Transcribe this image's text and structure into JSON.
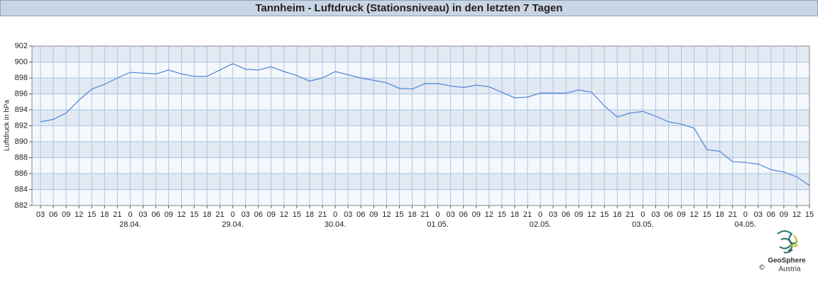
{
  "chart_data": {
    "type": "line",
    "title": "Tannheim - Luftdruck (Stationsniveau) in den letzten 7 Tagen",
    "y_label": "Luftdruck in hPa",
    "x": [
      "27.04. 03",
      "27.04. 06",
      "27.04. 09",
      "27.04. 12",
      "27.04. 15",
      "27.04. 18",
      "27.04. 21",
      "28.04. 00",
      "28.04. 03",
      "28.04. 06",
      "28.04. 09",
      "28.04. 12",
      "28.04. 15",
      "28.04. 18",
      "28.04. 21",
      "29.04. 00",
      "29.04. 03",
      "29.04. 06",
      "29.04. 09",
      "29.04. 12",
      "29.04. 15",
      "29.04. 18",
      "29.04. 21",
      "30.04. 00",
      "30.04. 03",
      "30.04. 06",
      "30.04. 09",
      "30.04. 12",
      "30.04. 15",
      "30.04. 18",
      "30.04. 21",
      "01.05. 00",
      "01.05. 03",
      "01.05. 06",
      "01.05. 09",
      "01.05. 12",
      "01.05. 15",
      "01.05. 18",
      "01.05. 21",
      "02.05. 00",
      "02.05. 03",
      "02.05. 06",
      "02.05. 09",
      "02.05. 12",
      "02.05. 15",
      "02.05. 18",
      "02.05. 21",
      "03.05. 00",
      "03.05. 03",
      "03.05. 06",
      "03.05. 09",
      "03.05. 12",
      "03.05. 15",
      "03.05. 18",
      "03.05. 21",
      "04.05. 00",
      "04.05. 03",
      "04.05. 06",
      "04.05. 09",
      "04.05. 12",
      "04.05. 15"
    ],
    "series": [
      {
        "name": "Luftdruck",
        "color": "#4f84d8",
        "values": [
          892.5,
          892.8,
          893.6,
          895.2,
          896.6,
          897.2,
          898.0,
          898.7,
          898.6,
          898.5,
          899.0,
          898.5,
          898.2,
          898.2,
          899.0,
          899.8,
          899.1,
          899.0,
          899.4,
          898.8,
          898.3,
          897.6,
          898.0,
          898.8,
          898.4,
          898.0,
          897.7,
          897.4,
          896.7,
          896.6,
          897.3,
          897.3,
          897.0,
          896.8,
          897.1,
          896.9,
          896.2,
          895.5,
          895.6,
          896.1,
          896.1,
          896.1,
          896.5,
          896.2,
          894.5,
          893.1,
          893.6,
          893.8,
          893.2,
          892.5,
          892.2,
          891.7,
          889.0,
          888.8,
          887.5,
          887.4,
          887.2,
          886.5,
          886.2,
          885.6,
          884.5
        ]
      }
    ],
    "xlim": [
      "27.04. 01",
      "04.05. 15"
    ],
    "xticks": [
      {
        "value": "27.04. 03",
        "label": "03"
      },
      {
        "value": "27.04. 06",
        "label": "06"
      },
      {
        "value": "27.04. 09",
        "label": "09"
      },
      {
        "value": "27.04. 12",
        "label": "12"
      },
      {
        "value": "27.04. 15",
        "label": "15"
      },
      {
        "value": "27.04. 18",
        "label": "18"
      },
      {
        "value": "27.04. 21",
        "label": "21"
      },
      {
        "value": "28.04. 00",
        "label": "0"
      },
      {
        "value": "28.04. 03",
        "label": "03"
      },
      {
        "value": "28.04. 06",
        "label": "06"
      },
      {
        "value": "28.04. 09",
        "label": "09"
      },
      {
        "value": "28.04. 12",
        "label": "12"
      },
      {
        "value": "28.04. 15",
        "label": "15"
      },
      {
        "value": "28.04. 18",
        "label": "18"
      },
      {
        "value": "28.04. 21",
        "label": "21"
      },
      {
        "value": "29.04. 00",
        "label": "0"
      },
      {
        "value": "29.04. 03",
        "label": "03"
      },
      {
        "value": "29.04. 06",
        "label": "06"
      },
      {
        "value": "29.04. 09",
        "label": "09"
      },
      {
        "value": "29.04. 12",
        "label": "12"
      },
      {
        "value": "29.04. 15",
        "label": "15"
      },
      {
        "value": "29.04. 18",
        "label": "18"
      },
      {
        "value": "29.04. 21",
        "label": "21"
      },
      {
        "value": "30.04. 00",
        "label": "0"
      },
      {
        "value": "30.04. 03",
        "label": "03"
      },
      {
        "value": "30.04. 06",
        "label": "06"
      },
      {
        "value": "30.04. 09",
        "label": "09"
      },
      {
        "value": "30.04. 12",
        "label": "12"
      },
      {
        "value": "30.04. 15",
        "label": "15"
      },
      {
        "value": "30.04. 18",
        "label": "18"
      },
      {
        "value": "30.04. 21",
        "label": "21"
      },
      {
        "value": "01.05. 00",
        "label": "0"
      },
      {
        "value": "01.05. 03",
        "label": "03"
      },
      {
        "value": "01.05. 06",
        "label": "06"
      },
      {
        "value": "01.05. 09",
        "label": "09"
      },
      {
        "value": "01.05. 12",
        "label": "12"
      },
      {
        "value": "01.05. 15",
        "label": "15"
      },
      {
        "value": "01.05. 18",
        "label": "18"
      },
      {
        "value": "01.05. 21",
        "label": "21"
      },
      {
        "value": "02.05. 00",
        "label": "0"
      },
      {
        "value": "02.05. 03",
        "label": "03"
      },
      {
        "value": "02.05. 06",
        "label": "06"
      },
      {
        "value": "02.05. 09",
        "label": "09"
      },
      {
        "value": "02.05. 12",
        "label": "12"
      },
      {
        "value": "02.05. 15",
        "label": "15"
      },
      {
        "value": "02.05. 18",
        "label": "18"
      },
      {
        "value": "02.05. 21",
        "label": "21"
      },
      {
        "value": "03.05. 00",
        "label": "0"
      },
      {
        "value": "03.05. 03",
        "label": "03"
      },
      {
        "value": "03.05. 06",
        "label": "06"
      },
      {
        "value": "03.05. 09",
        "label": "09"
      },
      {
        "value": "03.05. 12",
        "label": "12"
      },
      {
        "value": "03.05. 15",
        "label": "15"
      },
      {
        "value": "03.05. 18",
        "label": "18"
      },
      {
        "value": "03.05. 21",
        "label": "21"
      },
      {
        "value": "04.05. 00",
        "label": "0"
      },
      {
        "value": "04.05. 03",
        "label": "03"
      },
      {
        "value": "04.05. 06",
        "label": "06"
      },
      {
        "value": "04.05. 09",
        "label": "09"
      },
      {
        "value": "04.05. 12",
        "label": "12"
      },
      {
        "value": "04.05. 15",
        "label": "15"
      }
    ],
    "date_labels": [
      {
        "value": "28.04. 00",
        "label": "28.04."
      },
      {
        "value": "29.04. 00",
        "label": "29.04."
      },
      {
        "value": "30.04. 00",
        "label": "30.04."
      },
      {
        "value": "01.05. 00",
        "label": "01.05."
      },
      {
        "value": "02.05. 00",
        "label": "02.05."
      },
      {
        "value": "03.05. 00",
        "label": "03.05."
      },
      {
        "value": "04.05. 00",
        "label": "04.05."
      }
    ],
    "ylim": [
      882,
      902
    ],
    "yticks": [
      882,
      884,
      886,
      888,
      890,
      892,
      894,
      896,
      898,
      900,
      902
    ],
    "grid": true,
    "logo": {
      "name": "GeoSphere",
      "sub": "Austria",
      "copyright": "©"
    }
  }
}
